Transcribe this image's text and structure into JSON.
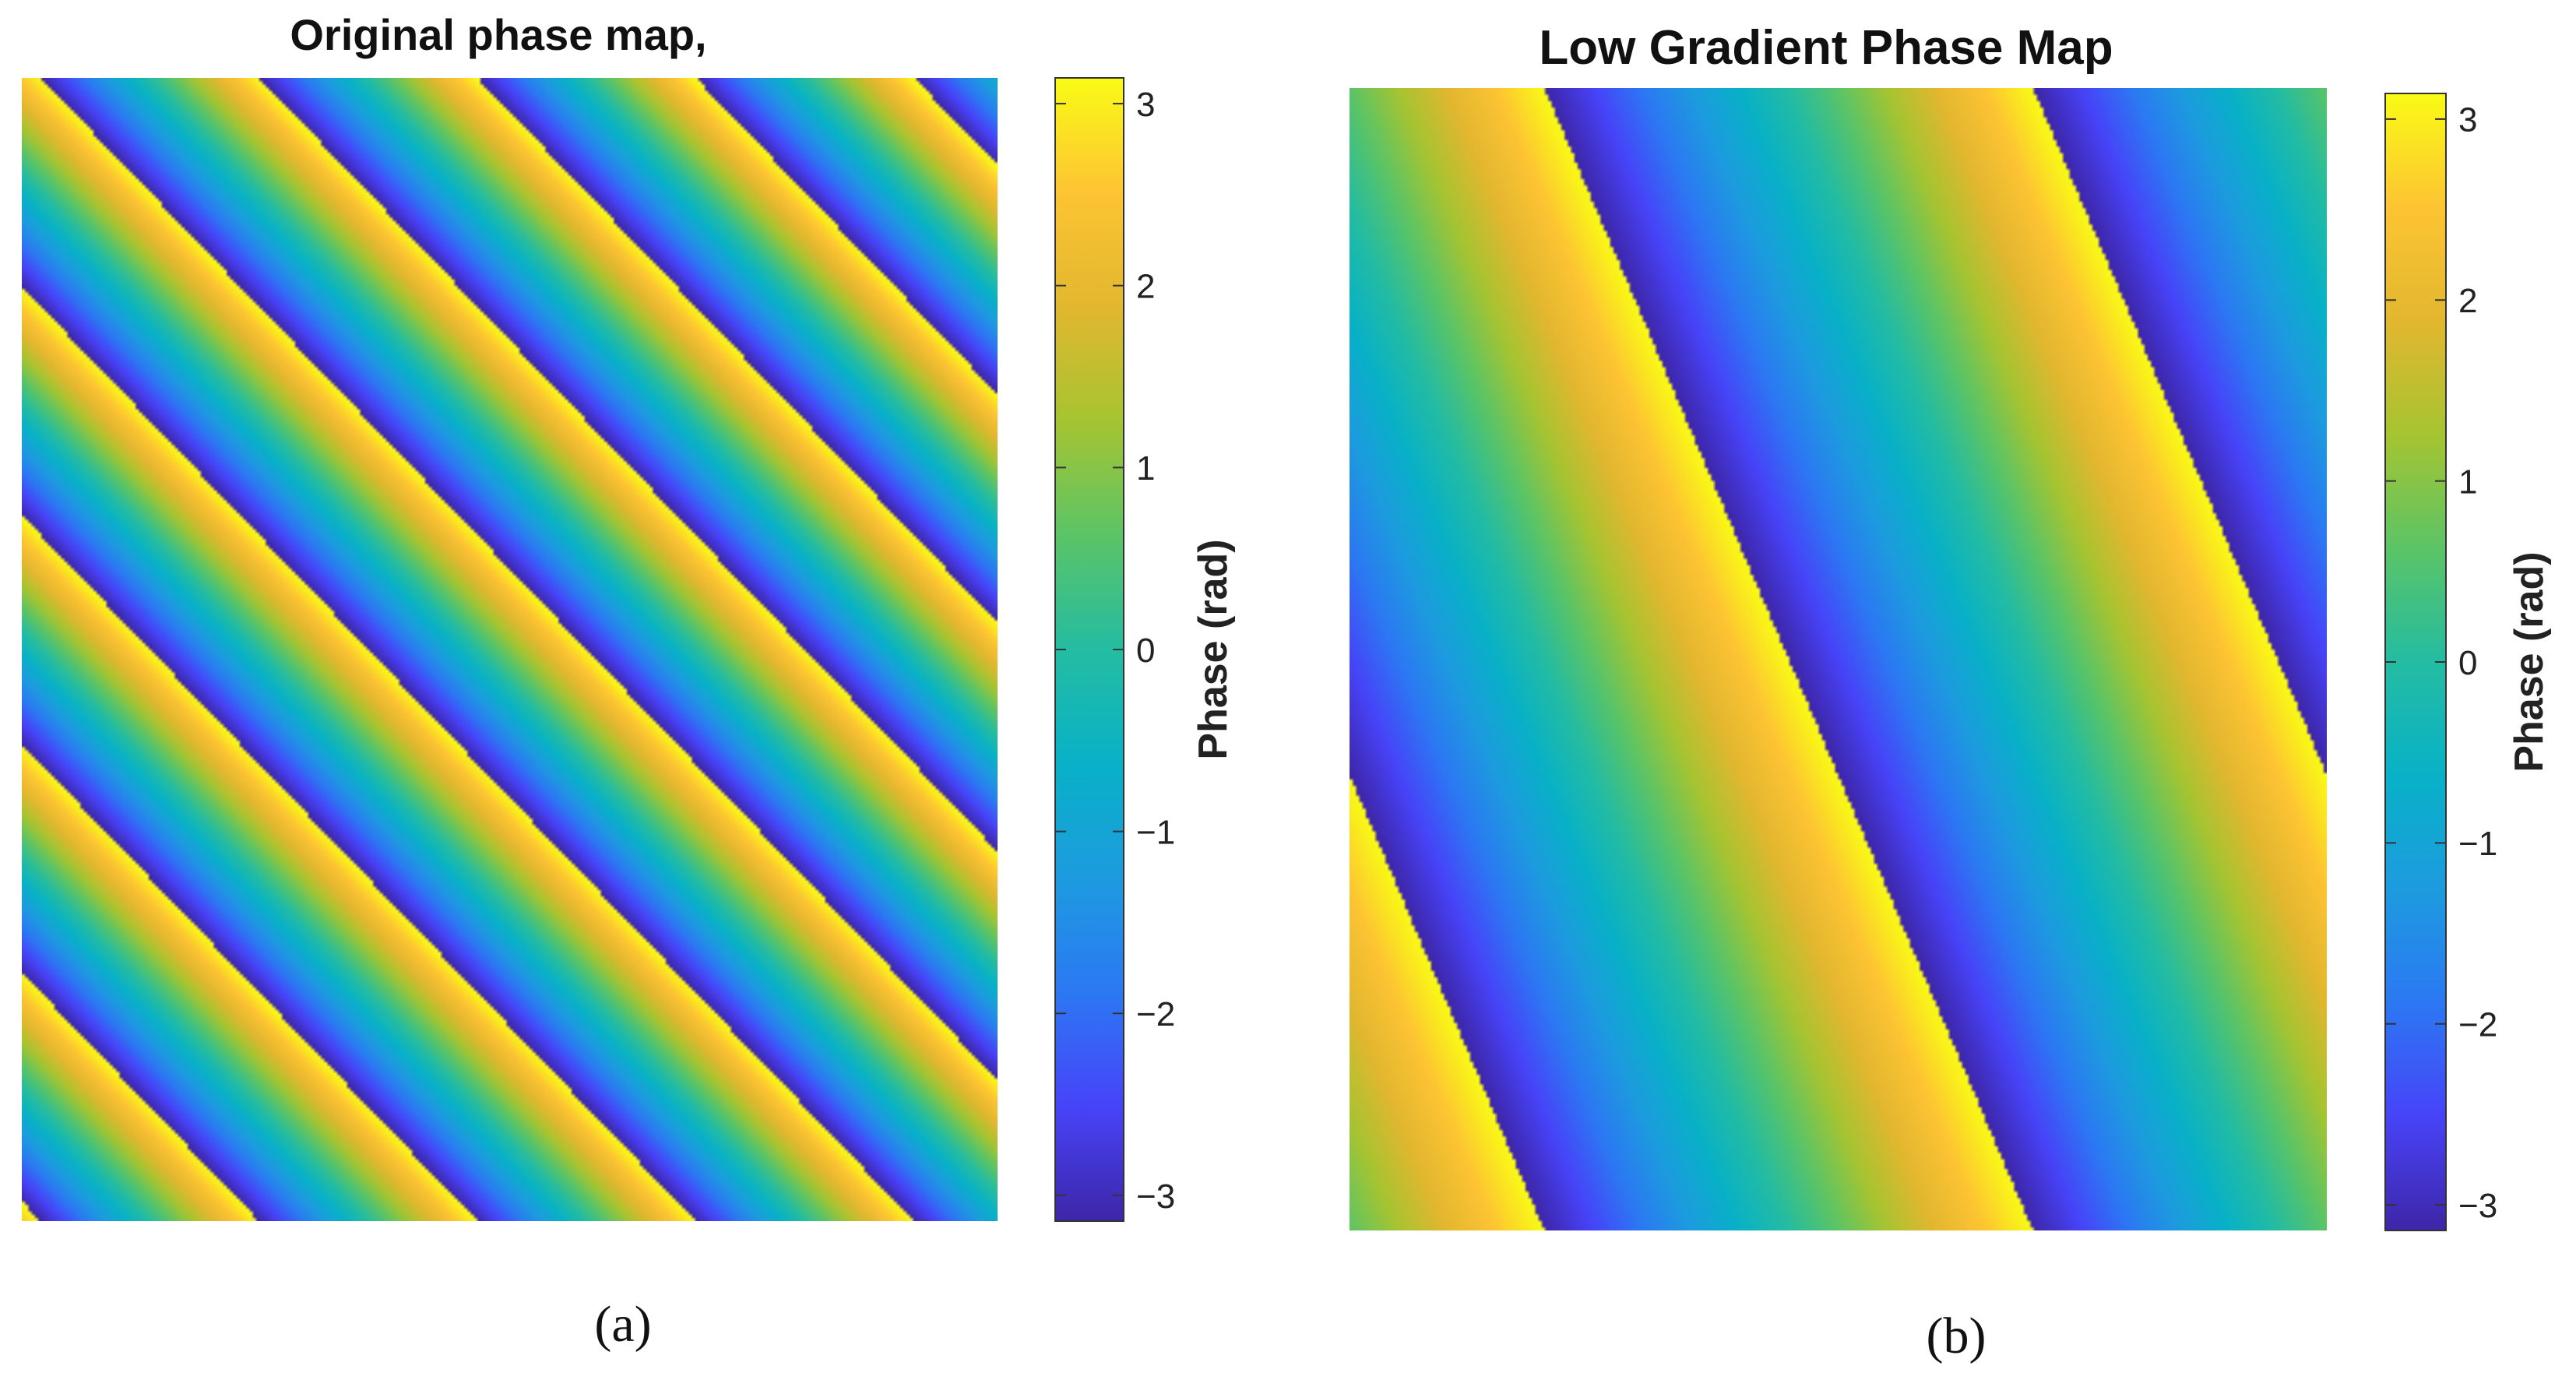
{
  "colormap_name": "parula",
  "colormap_stops": [
    "#3e26a8",
    "#4743f8",
    "#2c78f3",
    "#1d9bdf",
    "#08b1c7",
    "#24bca2",
    "#5bc466",
    "#a6c431",
    "#e2b72f",
    "#fdc433",
    "#f9fb15"
  ],
  "chart_data": [
    {
      "type": "heatmap",
      "panel": "(a)",
      "title": "Original phase map,",
      "caption": "(a)",
      "colorbar": {
        "label": "Phase (rad)",
        "range": [
          -3.14159,
          3.14159
        ],
        "ticks": [
          3,
          2,
          1,
          0,
          -1,
          -2,
          -3
        ],
        "tick_labels": [
          "3",
          "2",
          "1",
          "0",
          "−1",
          "−2",
          "−3"
        ]
      },
      "field": {
        "description_function": "wrap(phi0 + 2*pi*(kx*u + ky*v))",
        "fringe_periods_x": 4.47,
        "fringe_periods_y": 5.0,
        "phase_at_top_left": 2.6
      }
    },
    {
      "type": "heatmap",
      "panel": "(b)",
      "title": "Low Gradient Phase Map",
      "caption": "(b)",
      "colorbar": {
        "label": "Phase (rad)",
        "range": [
          -3.14159,
          3.14159
        ],
        "ticks": [
          3,
          2,
          1,
          0,
          -1,
          -2,
          -3
        ],
        "tick_labels": [
          "3",
          "2",
          "1",
          "0",
          "−1",
          "−2",
          "−3"
        ]
      },
      "field": {
        "description_function": "wrap(phi0 + 2*pi*(kx*u + ky*v))",
        "fringe_periods_x": 2.0,
        "fringe_periods_y": 1.0,
        "phase_at_top_left": 0.65
      }
    }
  ]
}
